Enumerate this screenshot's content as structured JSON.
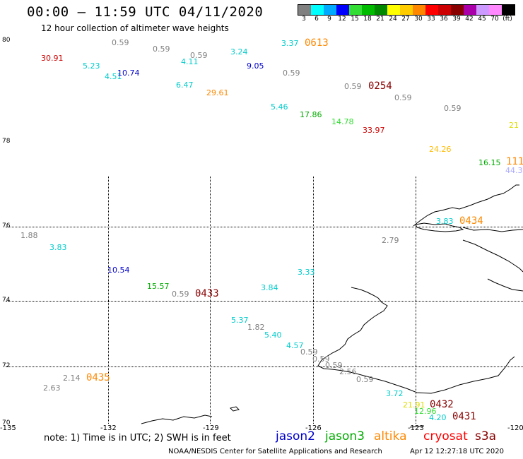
{
  "header": {
    "title": "00:00 – 11:59 UTC 04/11/2020",
    "subtitle": "12 hour collection of altimeter wave heights"
  },
  "legend": {
    "unit": "(ft)",
    "bins": [
      {
        "label": "3",
        "color": "#808080"
      },
      {
        "label": "6",
        "color": "#00ffff"
      },
      {
        "label": "9",
        "color": "#00aaff"
      },
      {
        "label": "12",
        "color": "#0000ff"
      },
      {
        "label": "15",
        "color": "#33dd33"
      },
      {
        "label": "18",
        "color": "#00bb00"
      },
      {
        "label": "21",
        "color": "#008800"
      },
      {
        "label": "24",
        "color": "#ffff00"
      },
      {
        "label": "27",
        "color": "#ffcc00"
      },
      {
        "label": "30",
        "color": "#ff8800"
      },
      {
        "label": "33",
        "color": "#ff0000"
      },
      {
        "label": "36",
        "color": "#cc0000"
      },
      {
        "label": "39",
        "color": "#880000"
      },
      {
        "label": "42",
        "color": "#aa00aa"
      },
      {
        "label": "45",
        "color": "#cc99ff"
      },
      {
        "label": "70",
        "color": "#ff88ff"
      },
      {
        "label": "(ft)",
        "color": "#000000"
      }
    ]
  },
  "axes": {
    "lat_labels": [
      "80",
      "78",
      "76",
      "74",
      "72",
      "70"
    ],
    "lon_labels": [
      "-135",
      "-132",
      "-129",
      "-126",
      "-123",
      "-120"
    ]
  },
  "observations": [
    {
      "text": "0.59",
      "color": "#808080"
    },
    {
      "text": "0.59",
      "color": "#808080"
    },
    {
      "text": "0.59",
      "color": "#808080"
    },
    {
      "text": "30.91",
      "color": "#cc0000"
    },
    {
      "text": "5.23",
      "color": "#00cccc"
    },
    {
      "text": "4.51",
      "color": "#00cccc"
    },
    {
      "text": "10.74",
      "color": "#0000cc"
    },
    {
      "text": "4.11",
      "color": "#00cccc"
    },
    {
      "text": "3.24",
      "color": "#00cccc"
    },
    {
      "text": "3.37",
      "color": "#00cccc"
    },
    {
      "text": "9.05",
      "color": "#0000cc"
    },
    {
      "text": "0.59",
      "color": "#808080"
    },
    {
      "text": "6.47",
      "color": "#00cccc"
    },
    {
      "text": "29.61",
      "color": "#ff8800"
    },
    {
      "text": "0.59",
      "color": "#808080"
    },
    {
      "text": "0.59",
      "color": "#808080"
    },
    {
      "text": "0.59",
      "color": "#808080"
    },
    {
      "text": "5.46",
      "color": "#00cccc"
    },
    {
      "text": "17.86",
      "color": "#00aa00"
    },
    {
      "text": "14.78",
      "color": "#33dd33"
    },
    {
      "text": "33.97",
      "color": "#cc0000"
    },
    {
      "text": "21",
      "color": "#dddd00"
    },
    {
      "text": "24.26",
      "color": "#ffbb00"
    },
    {
      "text": "16.15",
      "color": "#00aa00"
    },
    {
      "text": "44.3",
      "color": "#aaaaff"
    },
    {
      "text": "1.88",
      "color": "#808080"
    },
    {
      "text": "3.83",
      "color": "#00cccc"
    },
    {
      "text": "3.83",
      "color": "#00cccc"
    },
    {
      "text": "2.79",
      "color": "#808080"
    },
    {
      "text": "10.54",
      "color": "#0000cc"
    },
    {
      "text": "3.33",
      "color": "#00cccc"
    },
    {
      "text": "15.57",
      "color": "#00aa00"
    },
    {
      "text": "0.59",
      "color": "#808080"
    },
    {
      "text": "3.84",
      "color": "#00cccc"
    },
    {
      "text": "5.37",
      "color": "#00cccc"
    },
    {
      "text": "1.82",
      "color": "#808080"
    },
    {
      "text": "5.40",
      "color": "#00cccc"
    },
    {
      "text": "4.57",
      "color": "#00cccc"
    },
    {
      "text": "0.59",
      "color": "#808080"
    },
    {
      "text": "0.59",
      "color": "#808080"
    },
    {
      "text": "0.59",
      "color": "#808080"
    },
    {
      "text": "2.56",
      "color": "#808080"
    },
    {
      "text": "0.59",
      "color": "#808080"
    },
    {
      "text": "2.14",
      "color": "#808080"
    },
    {
      "text": "2.63",
      "color": "#808080"
    },
    {
      "text": "3.72",
      "color": "#00cccc"
    },
    {
      "text": "21.91",
      "color": "#dddd00"
    },
    {
      "text": "12.96",
      "color": "#33dd33"
    },
    {
      "text": "4.20",
      "color": "#00cccc"
    }
  ],
  "pass_times": [
    {
      "text": "0613",
      "color": "#ff8800"
    },
    {
      "text": "0254",
      "color": "#880000"
    },
    {
      "text": "111",
      "color": "#ff8800"
    },
    {
      "text": "0434",
      "color": "#ff8800"
    },
    {
      "text": "0433",
      "color": "#880000"
    },
    {
      "text": "0435",
      "color": "#ff8800"
    },
    {
      "text": "0432",
      "color": "#880000"
    },
    {
      "text": "0431",
      "color": "#880000"
    }
  ],
  "footer": {
    "note": "note: 1) Time is in UTC; 2) SWH is in feet",
    "satellites": [
      {
        "name": "jason2",
        "color": "#0000cc"
      },
      {
        "name": "jason3",
        "color": "#00aa00"
      },
      {
        "name": "altika",
        "color": "#ff8800"
      },
      {
        "name": "cryosat",
        "color": "#ff0000"
      },
      {
        "name": "s3a",
        "color": "#880000"
      }
    ],
    "credit": "NOAA/NESDIS Center for Satellite Applications and Research",
    "timestamp": "Apr 12 12:27:18 UTC 2020"
  }
}
